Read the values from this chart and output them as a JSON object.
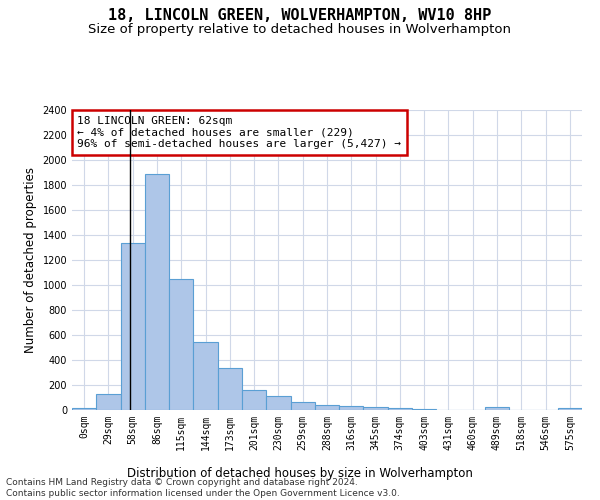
{
  "title": "18, LINCOLN GREEN, WOLVERHAMPTON, WV10 8HP",
  "subtitle": "Size of property relative to detached houses in Wolverhampton",
  "xlabel": "Distribution of detached houses by size in Wolverhampton",
  "ylabel": "Number of detached properties",
  "bar_color": "#aec6e8",
  "bar_edge_color": "#5a9fd4",
  "background_color": "#ffffff",
  "grid_color": "#d0d8e8",
  "categories": [
    "0sqm",
    "29sqm",
    "58sqm",
    "86sqm",
    "115sqm",
    "144sqm",
    "173sqm",
    "201sqm",
    "230sqm",
    "259sqm",
    "288sqm",
    "316sqm",
    "345sqm",
    "374sqm",
    "403sqm",
    "431sqm",
    "460sqm",
    "489sqm",
    "518sqm",
    "546sqm",
    "575sqm"
  ],
  "values": [
    15,
    125,
    1340,
    1890,
    1045,
    545,
    340,
    160,
    110,
    65,
    40,
    30,
    28,
    20,
    5,
    0,
    0,
    25,
    0,
    0,
    15
  ],
  "ylim": [
    0,
    2400
  ],
  "yticks": [
    0,
    200,
    400,
    600,
    800,
    1000,
    1200,
    1400,
    1600,
    1800,
    2000,
    2200,
    2400
  ],
  "annotation_title": "18 LINCOLN GREEN: 62sqm",
  "annotation_line1": "← 4% of detached houses are smaller (229)",
  "annotation_line2": "96% of semi-detached houses are larger (5,427) →",
  "annotation_box_color": "#ffffff",
  "annotation_box_edge_color": "#cc0000",
  "footer_line1": "Contains HM Land Registry data © Crown copyright and database right 2024.",
  "footer_line2": "Contains public sector information licensed under the Open Government Licence v3.0.",
  "title_fontsize": 11,
  "subtitle_fontsize": 9.5,
  "axis_label_fontsize": 8.5,
  "tick_fontsize": 7,
  "annotation_fontsize": 8,
  "footer_fontsize": 6.5
}
